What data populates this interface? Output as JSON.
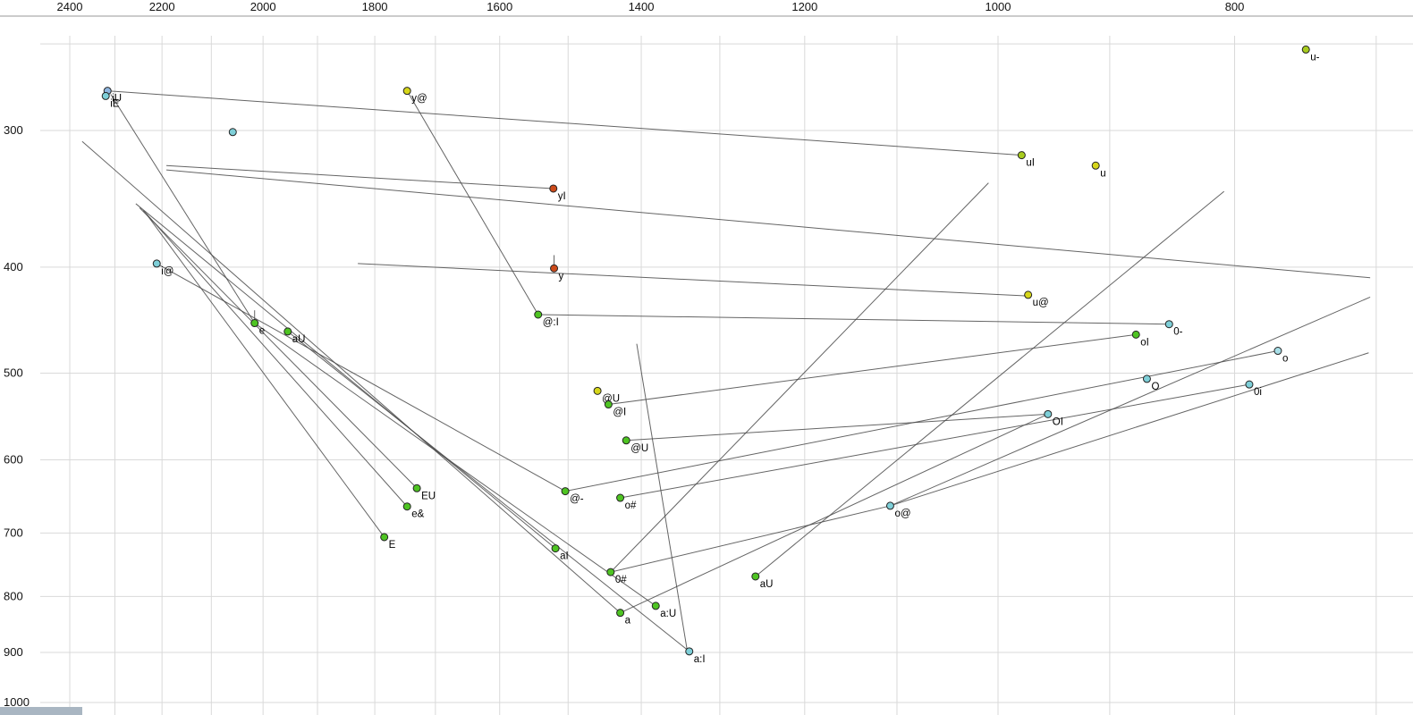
{
  "chart_data": {
    "type": "scatter",
    "title": "",
    "description": "Vowel formant plot (F2 horizontal, reversed, log scale; F1 vertical, log scale) with diphthong trajectory lines",
    "x_axis": {
      "label": "",
      "ticks": [
        2400,
        2200,
        2000,
        1800,
        1600,
        1400,
        1200,
        1000,
        800
      ],
      "range": [
        2450,
        690
      ],
      "scale": "log",
      "gridlines": [
        2400,
        2300,
        2200,
        2100,
        2000,
        1900,
        1800,
        1700,
        1600,
        1500,
        1400,
        1300,
        1200,
        1100,
        1000,
        900,
        800,
        700
      ]
    },
    "y_axis": {
      "label": "",
      "ticks": [
        300,
        400,
        500,
        600,
        700,
        800,
        900,
        1000
      ],
      "range": [
        250,
        1030
      ],
      "scale": "log",
      "gridlines": [
        250,
        300,
        400,
        500,
        600,
        700,
        800,
        900,
        1000
      ]
    },
    "colors": {
      "green": "#4ec422",
      "yellowgreen": "#a8cc1e",
      "yellow": "#d6d61a",
      "cyan": "#7ecfd8",
      "lightcyan": "#a8dfe8",
      "blue": "#8fb6e0",
      "red": "#cc4a1a",
      "gridline": "#d9d9d9",
      "axisline": "#9a9a9a",
      "trajectory": "#4a4a4a",
      "point_stroke": "#222222",
      "label_text": "#000000",
      "tick_text": "#111111"
    },
    "points": [
      {
        "label": "u-",
        "f2": 748,
        "f1": 253,
        "color": "yellowgreen"
      },
      {
        "label": "iU",
        "f2": 2316,
        "f1": 276,
        "color": "blue"
      },
      {
        "label": "iE",
        "f2": 2320,
        "f1": 279,
        "color": "cyan"
      },
      {
        "label": "y@",
        "f2": 1746,
        "f1": 276,
        "color": "yellow"
      },
      {
        "label": "",
        "f2": 2058,
        "f1": 301,
        "color": "cyan"
      },
      {
        "label": "uI",
        "f2": 978,
        "f1": 316,
        "color": "yellowgreen"
      },
      {
        "label": "u",
        "f2": 912,
        "f1": 323,
        "color": "yellow"
      },
      {
        "label": "yI",
        "f2": 1521,
        "f1": 339,
        "color": "red"
      },
      {
        "label": "i@",
        "f2": 2211,
        "f1": 397,
        "color": "cyan"
      },
      {
        "label": "y",
        "f2": 1520,
        "f1": 401,
        "color": "red"
      },
      {
        "label": "@:I",
        "f2": 1543,
        "f1": 442,
        "color": "green"
      },
      {
        "label": "u@",
        "f2": 972,
        "f1": 424,
        "color": "yellow"
      },
      {
        "label": "0-",
        "f2": 851,
        "f1": 451,
        "color": "cyan"
      },
      {
        "label": "oI",
        "f2": 878,
        "f1": 461,
        "color": "green"
      },
      {
        "label": "e",
        "f2": 2016,
        "f1": 450,
        "color": "green"
      },
      {
        "label": "aU",
        "f2": 1954,
        "f1": 458,
        "color": "green"
      },
      {
        "label": "o",
        "f2": 768,
        "f1": 477,
        "color": "lightcyan"
      },
      {
        "label": "O",
        "f2": 869,
        "f1": 506,
        "color": "cyan"
      },
      {
        "label": "0i",
        "f2": 789,
        "f1": 512,
        "color": "cyan"
      },
      {
        "label": "@U",
        "f2": 1459,
        "f1": 519,
        "color": "yellow"
      },
      {
        "label": "@I",
        "f2": 1444,
        "f1": 534,
        "color": "green"
      },
      {
        "label": "OI",
        "f2": 954,
        "f1": 545,
        "color": "cyan"
      },
      {
        "label": "@U",
        "f2": 1420,
        "f1": 576,
        "color": "green"
      },
      {
        "label": "EU",
        "f2": 1730,
        "f1": 637,
        "color": "green"
      },
      {
        "label": "@-",
        "f2": 1504,
        "f1": 641,
        "color": "green"
      },
      {
        "label": "o#",
        "f2": 1428,
        "f1": 650,
        "color": "green"
      },
      {
        "label": "e&",
        "f2": 1746,
        "f1": 662,
        "color": "green"
      },
      {
        "label": "o@",
        "f2": 1107,
        "f1": 661,
        "color": "cyan"
      },
      {
        "label": "E",
        "f2": 1784,
        "f1": 706,
        "color": "green"
      },
      {
        "label": "aI",
        "f2": 1518,
        "f1": 723,
        "color": "green"
      },
      {
        "label": "0#",
        "f2": 1441,
        "f1": 760,
        "color": "green"
      },
      {
        "label": "aU",
        "f2": 1257,
        "f1": 767,
        "color": "green"
      },
      {
        "label": "a",
        "f2": 1428,
        "f1": 828,
        "color": "green"
      },
      {
        "label": "a:U",
        "f2": 1381,
        "f1": 816,
        "color": "green"
      },
      {
        "label": "a:I",
        "f2": 1338,
        "f1": 898,
        "color": "cyan"
      }
    ],
    "segments": [
      [
        2316,
        276,
        978,
        316
      ],
      [
        2309,
        278,
        2016,
        450
      ],
      [
        1746,
        276,
        1543,
        442
      ],
      [
        2191,
        323,
        1521,
        339
      ],
      [
        2191,
        326,
        704,
        409
      ],
      [
        2372,
        307,
        1428,
        828
      ],
      [
        2255,
        350,
        1518,
        723
      ],
      [
        2247,
        353,
        1730,
        637
      ],
      [
        2239,
        355,
        1746,
        662
      ],
      [
        2232,
        358,
        1784,
        706
      ],
      [
        1954,
        458,
        1338,
        898
      ],
      [
        2016,
        450,
        1381,
        816
      ],
      [
        808,
        341,
        1257,
        767
      ],
      [
        705,
        479,
        1107,
        661
      ],
      [
        704,
        426,
        1107,
        661
      ],
      [
        1406,
        470,
        1341,
        893
      ],
      [
        1829,
        397,
        972,
        425
      ],
      [
        1543,
        442,
        851,
        451
      ],
      [
        1444,
        534,
        878,
        461
      ],
      [
        1420,
        576,
        954,
        545
      ],
      [
        1504,
        641,
        768,
        477
      ],
      [
        1428,
        650,
        789,
        512
      ],
      [
        1441,
        760,
        1107,
        661
      ],
      [
        1428,
        828,
        954,
        545
      ],
      [
        2211,
        397,
        1504,
        641
      ],
      [
        1009,
        335,
        1441,
        760
      ],
      [
        1520,
        390,
        1520,
        401
      ],
      [
        2016,
        438,
        2016,
        450
      ]
    ]
  }
}
